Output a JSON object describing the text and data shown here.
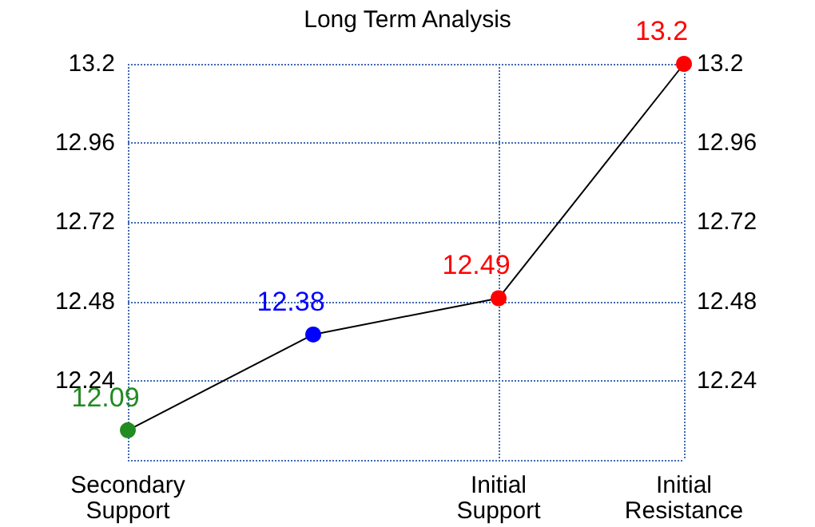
{
  "chart_data": {
    "type": "line",
    "title": "Long Term Analysis",
    "categories": [
      "Secondary\nSupport",
      null,
      "Initial\nSupport",
      "Initial\nResistance"
    ],
    "series": [
      {
        "color": "#000000",
        "colors": [
          "#228b22",
          "#0000ff",
          "#ff0000",
          "#ff0000"
        ],
        "values": [
          12.09,
          12.38,
          12.49,
          13.2
        ]
      }
    ],
    "ylim": [
      12.0,
      13.2
    ],
    "yticks": [
      12.24,
      12.48,
      12.72,
      12.96,
      13.2
    ],
    "y2lim": [
      12.0,
      13.2
    ],
    "y2ticks": [
      12.24,
      12.48,
      12.72,
      12.96,
      13.2
    ],
    "grid": true,
    "marker": "circle",
    "line_style": "solid",
    "data_labels": true
  }
}
